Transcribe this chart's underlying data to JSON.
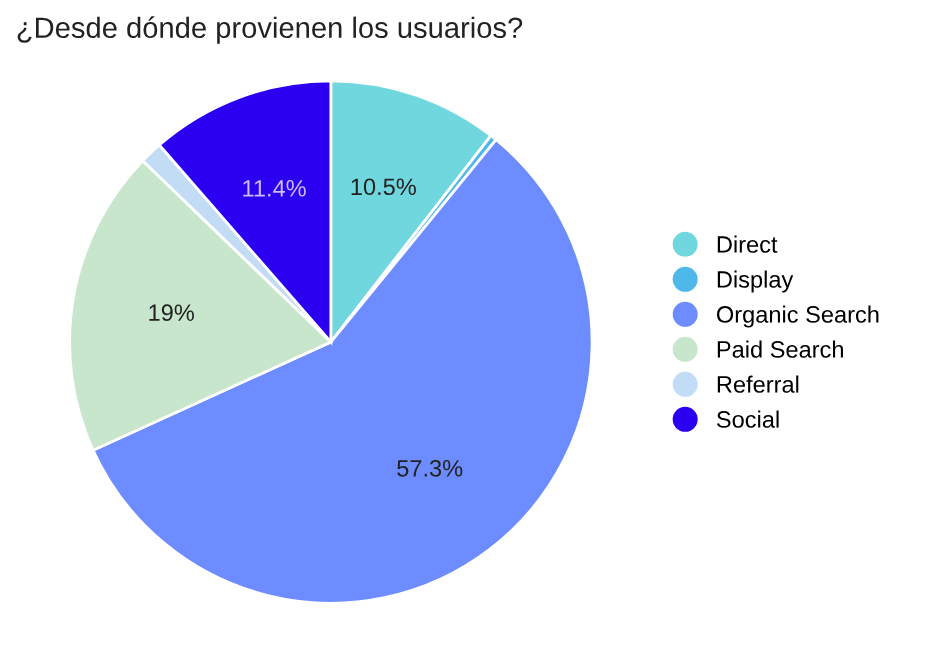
{
  "chart_data": {
    "type": "pie",
    "title": "¿Desde dónde provienen los usuarios?",
    "categories": [
      "Direct",
      "Display",
      "Organic Search",
      "Paid Search",
      "Referral",
      "Social"
    ],
    "values": [
      10.5,
      0.4,
      57.3,
      19,
      1.4,
      11.4
    ],
    "value_labels": [
      "10.5%",
      null,
      "57.3%",
      "19%",
      null,
      "11.4%"
    ],
    "colors": [
      "#70d7de",
      "#4fb8ea",
      "#6c8cff",
      "#c7e6cb",
      "#c2dcf5",
      "#2b00f0"
    ],
    "legend": "right"
  }
}
